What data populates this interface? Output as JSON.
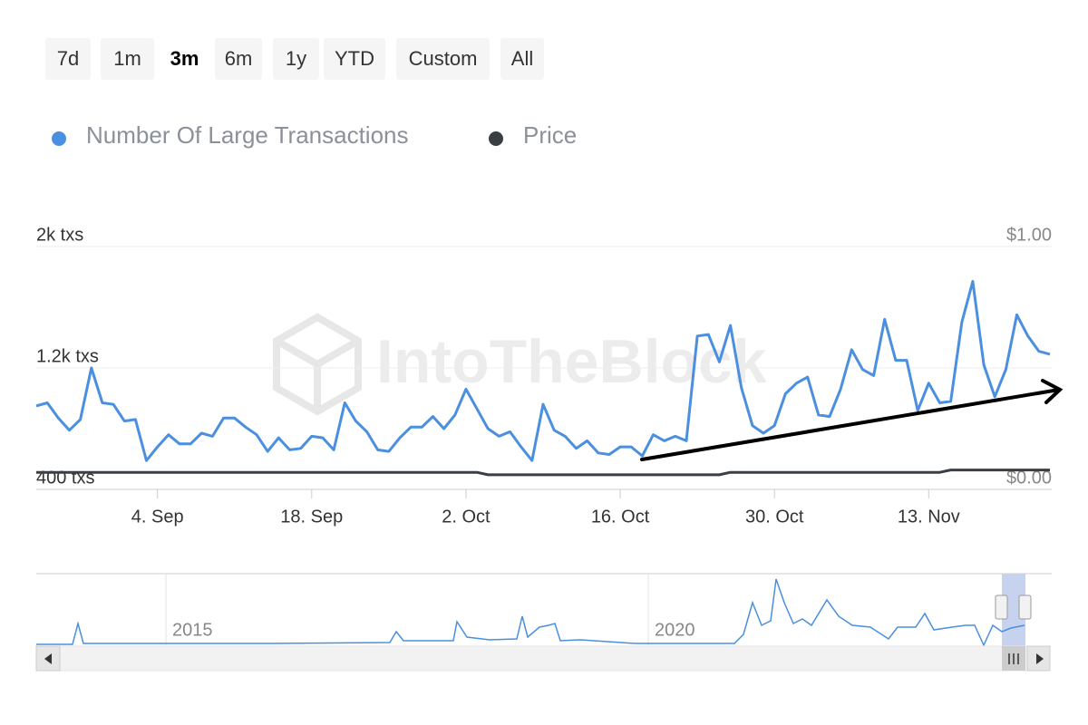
{
  "buttons": [
    {
      "label": "7d"
    },
    {
      "label": "1m"
    },
    {
      "label": "3m",
      "active": true
    },
    {
      "label": "6m"
    },
    {
      "label": "1y"
    },
    {
      "label": "YTD"
    },
    {
      "label": "Custom"
    },
    {
      "label": "All"
    }
  ],
  "chart_data": {
    "type": "line",
    "watermark": "IntoTheBlock",
    "x": [
      "24. Aug",
      "25. Aug",
      "26. Aug",
      "27. Aug",
      "28. Aug",
      "29. Aug",
      "30. Aug",
      "31. Aug",
      "1. Sep",
      "2. Sep",
      "3. Sep",
      "4. Sep",
      "5. Sep",
      "6. Sep",
      "7. Sep",
      "8. Sep",
      "9. Sep",
      "10. Sep",
      "11. Sep",
      "12. Sep",
      "13. Sep",
      "14. Sep",
      "15. Sep",
      "16. Sep",
      "17. Sep",
      "18. Sep",
      "19. Sep",
      "20. Sep",
      "21. Sep",
      "22. Sep",
      "23. Sep",
      "24. Sep",
      "25. Sep",
      "26. Sep",
      "27. Sep",
      "28. Sep",
      "29. Sep",
      "30. Sep",
      "1. Oct",
      "2. Oct",
      "3. Oct",
      "4. Oct",
      "5. Oct",
      "6. Oct",
      "7. Oct",
      "8. Oct",
      "9. Oct",
      "10. Oct",
      "11. Oct",
      "12. Oct",
      "13. Oct",
      "14. Oct",
      "15. Oct",
      "16. Oct",
      "17. Oct",
      "18. Oct",
      "19. Oct",
      "20. Oct",
      "21. Oct",
      "22. Oct",
      "23. Oct",
      "24. Oct",
      "25. Oct",
      "26. Oct",
      "27. Oct",
      "28. Oct",
      "29. Oct",
      "30. Oct",
      "31. Oct",
      "1. Nov",
      "2. Nov",
      "3. Nov",
      "4. Nov",
      "5. Nov",
      "6. Nov",
      "7. Nov",
      "8. Nov",
      "9. Nov",
      "10. Nov",
      "11. Nov",
      "12. Nov",
      "13. Nov",
      "14. Nov",
      "15. Nov",
      "16. Nov",
      "17. Nov",
      "18. Nov",
      "19. Nov",
      "20. Nov",
      "21. Nov",
      "22. Nov",
      "23. Nov",
      "24. Nov"
    ],
    "xticks": [
      "4. Sep",
      "18. Sep",
      "2. Oct",
      "16. Oct",
      "30. Oct",
      "13. Nov"
    ],
    "ylim": [
      400,
      2000
    ],
    "yticks": [
      {
        "value": 400,
        "label": "400 txs"
      },
      {
        "value": 1200,
        "label": "1.2k txs"
      },
      {
        "value": 2000,
        "label": "2k txs"
      }
    ],
    "y2lim": [
      0,
      1
    ],
    "y2ticks": [
      {
        "value": 0,
        "label": "$0.00"
      },
      {
        "value": 1,
        "label": "$1.00"
      }
    ],
    "grid": true,
    "series": [
      {
        "name": "Number Of Large Transactions",
        "color": "#4a8fe0",
        "values": [
          950,
          970,
          870,
          790,
          860,
          1200,
          970,
          960,
          850,
          860,
          590,
          680,
          760,
          700,
          700,
          770,
          750,
          870,
          870,
          810,
          760,
          650,
          740,
          660,
          670,
          750,
          740,
          660,
          970,
          850,
          780,
          660,
          650,
          740,
          810,
          810,
          880,
          800,
          890,
          1060,
          930,
          800,
          750,
          780,
          680,
          590,
          960,
          790,
          750,
          670,
          720,
          640,
          630,
          680,
          680,
          620,
          760,
          720,
          750,
          720,
          1410,
          1420,
          1240,
          1480,
          1070,
          820,
          770,
          820,
          1030,
          1100,
          1140,
          890,
          880,
          1060,
          1320,
          1190,
          1150,
          1520,
          1250,
          1250,
          920,
          1100,
          970,
          980,
          1500,
          1770,
          1220,
          1010,
          1190,
          1550,
          1410,
          1310,
          1290
        ]
      },
      {
        "name": "Price",
        "color": "#3a3f44",
        "axis": "y2",
        "values": [
          0.07,
          0.07,
          0.07,
          0.07,
          0.07,
          0.07,
          0.07,
          0.07,
          0.07,
          0.07,
          0.07,
          0.07,
          0.07,
          0.07,
          0.07,
          0.07,
          0.07,
          0.07,
          0.07,
          0.07,
          0.07,
          0.07,
          0.07,
          0.07,
          0.07,
          0.07,
          0.07,
          0.07,
          0.07,
          0.07,
          0.07,
          0.07,
          0.07,
          0.07,
          0.07,
          0.07,
          0.07,
          0.07,
          0.07,
          0.07,
          0.07,
          0.06,
          0.06,
          0.06,
          0.06,
          0.06,
          0.06,
          0.06,
          0.06,
          0.06,
          0.06,
          0.06,
          0.06,
          0.06,
          0.06,
          0.06,
          0.06,
          0.06,
          0.06,
          0.06,
          0.06,
          0.06,
          0.06,
          0.07,
          0.07,
          0.07,
          0.07,
          0.07,
          0.07,
          0.07,
          0.07,
          0.07,
          0.07,
          0.07,
          0.07,
          0.07,
          0.07,
          0.07,
          0.07,
          0.07,
          0.07,
          0.07,
          0.07,
          0.08,
          0.08,
          0.08,
          0.08,
          0.08,
          0.08,
          0.08,
          0.08,
          0.08,
          0.08
        ]
      }
    ]
  },
  "navigator": {
    "labels": [
      "2015",
      "2020"
    ]
  }
}
